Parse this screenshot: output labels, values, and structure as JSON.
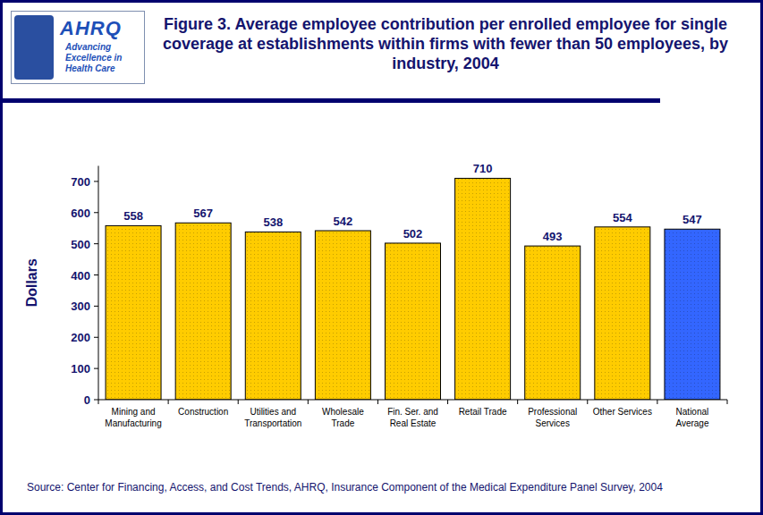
{
  "logo": {
    "name": "AHRQ",
    "tagline": "Advancing Excellence in Health Care"
  },
  "chart_data": {
    "type": "bar",
    "title": "Figure 3. Average employee contribution per enrolled employee for single coverage at establishments within firms with fewer than 50 employees, by industry, 2004",
    "y_label": "Dollars",
    "source": "Source: Center for Financing, Access, and Cost Trends, AHRQ, Insurance Component of the Medical Expenditure Panel Survey, 2004",
    "categories": [
      "Mining and Manufacturing",
      "Construction",
      "Utilities and Transportation",
      "Wholesale Trade",
      "Fin. Ser. and Real Estate",
      "Retail Trade",
      "Professional Services",
      "Other Services",
      "National Average"
    ],
    "values": [
      558,
      567,
      538,
      542,
      502,
      710,
      493,
      554,
      547
    ],
    "colors": [
      "#ffcc00",
      "#ffcc00",
      "#ffcc00",
      "#ffcc00",
      "#ffcc00",
      "#ffcc00",
      "#ffcc00",
      "#ffcc00",
      "#3366ff"
    ],
    "ylim": [
      0,
      750
    ],
    "yticks": [
      0,
      100,
      200,
      300,
      400,
      500,
      600,
      700
    ],
    "grid": false,
    "data_labels": true
  }
}
